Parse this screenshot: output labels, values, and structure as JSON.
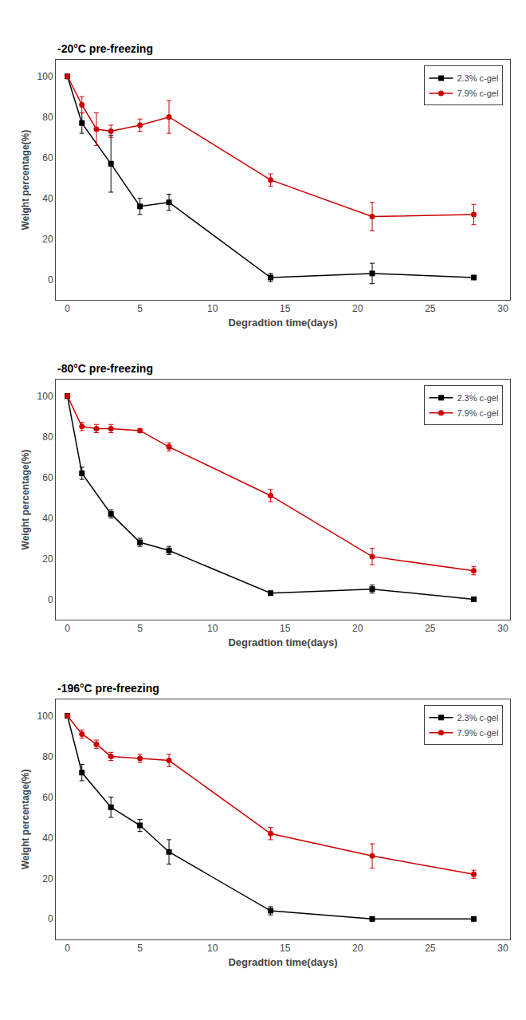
{
  "chart_data": [
    {
      "type": "line",
      "title": "-20°C pre-freezing",
      "xlabel": "Degradtion time(days)",
      "ylabel": "Weight percentage(%)",
      "xlim": [
        -0.8,
        30.5
      ],
      "ylim": [
        -10,
        108
      ],
      "xticks": [
        0,
        5,
        10,
        15,
        20,
        25,
        30
      ],
      "yticks": [
        0,
        20,
        40,
        60,
        80,
        100
      ],
      "legend": "upper right",
      "series": [
        {
          "name": "2.3% c-gel",
          "color": "#000000",
          "marker": "square",
          "x": [
            0,
            1,
            3,
            5,
            7,
            14,
            21,
            28
          ],
          "values": [
            100,
            77,
            57,
            36,
            38,
            1,
            3,
            1
          ],
          "yerr": [
            0,
            5,
            14,
            4,
            4,
            2,
            5,
            1
          ]
        },
        {
          "name": "7.9% c-gel",
          "color": "#cc0000",
          "marker": "circle",
          "x": [
            0,
            1,
            2,
            3,
            5,
            7,
            14,
            21,
            28
          ],
          "values": [
            100,
            86,
            74,
            73,
            76,
            80,
            49,
            31,
            32
          ],
          "yerr": [
            0,
            4,
            8,
            3,
            3,
            8,
            3,
            7,
            5
          ]
        }
      ]
    },
    {
      "type": "line",
      "title": "-80°C pre-freezing",
      "xlabel": "Degradtion time(days)",
      "ylabel": "Weight percentage(%)",
      "xlim": [
        -0.8,
        30.5
      ],
      "ylim": [
        -10,
        108
      ],
      "xticks": [
        0,
        5,
        10,
        15,
        20,
        25,
        30
      ],
      "yticks": [
        0,
        20,
        40,
        60,
        80,
        100
      ],
      "legend": "upper right",
      "series": [
        {
          "name": "2.3% c-gel",
          "color": "#000000",
          "marker": "square",
          "x": [
            0,
            1,
            3,
            5,
            7,
            14,
            21,
            28
          ],
          "values": [
            100,
            62,
            42,
            28,
            24,
            3,
            5,
            0
          ],
          "yerr": [
            0,
            3,
            2,
            2,
            2,
            1,
            2,
            1
          ]
        },
        {
          "name": "7.9% c-gel",
          "color": "#cc0000",
          "marker": "circle",
          "x": [
            0,
            1,
            2,
            3,
            5,
            7,
            14,
            21,
            28
          ],
          "values": [
            100,
            85,
            84,
            84,
            83,
            75,
            51,
            21,
            14
          ],
          "yerr": [
            0,
            2,
            2,
            2,
            1,
            2,
            3,
            4,
            2
          ]
        }
      ]
    },
    {
      "type": "line",
      "title": "-196°C pre-freezing",
      "xlabel": "Degradtion time(days)",
      "ylabel": "Weight percentage(%)",
      "xlim": [
        -0.8,
        30.5
      ],
      "ylim": [
        -10,
        108
      ],
      "xticks": [
        0,
        5,
        10,
        15,
        20,
        25,
        30
      ],
      "yticks": [
        0,
        20,
        40,
        60,
        80,
        100
      ],
      "legend": "upper right",
      "series": [
        {
          "name": "2.3% c-gel",
          "color": "#000000",
          "marker": "square",
          "x": [
            0,
            1,
            3,
            5,
            7,
            14,
            21,
            28
          ],
          "values": [
            100,
            72,
            55,
            46,
            33,
            4,
            0,
            0
          ],
          "yerr": [
            0,
            4,
            5,
            3,
            6,
            2,
            1,
            1
          ]
        },
        {
          "name": "7.9% c-gel",
          "color": "#cc0000",
          "marker": "circle",
          "x": [
            0,
            1,
            2,
            3,
            5,
            7,
            14,
            21,
            28
          ],
          "values": [
            100,
            91,
            86,
            80,
            79,
            78,
            42,
            31,
            22
          ],
          "yerr": [
            0,
            2,
            2,
            2,
            2,
            3,
            3,
            6,
            2
          ]
        }
      ]
    }
  ]
}
